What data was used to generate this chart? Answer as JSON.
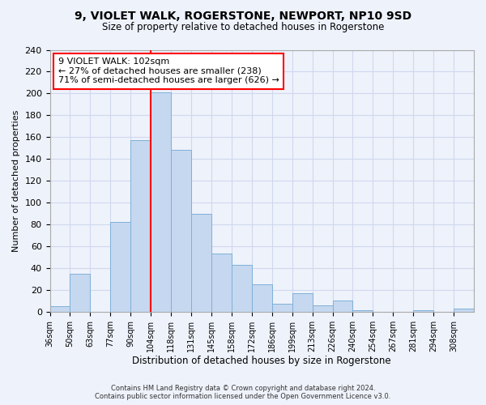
{
  "title": "9, VIOLET WALK, ROGERSTONE, NEWPORT, NP10 9SD",
  "subtitle": "Size of property relative to detached houses in Rogerstone",
  "xlabel": "Distribution of detached houses by size in Rogerstone",
  "ylabel": "Number of detached properties",
  "bar_labels": [
    "36sqm",
    "50sqm",
    "63sqm",
    "77sqm",
    "90sqm",
    "104sqm",
    "118sqm",
    "131sqm",
    "145sqm",
    "158sqm",
    "172sqm",
    "186sqm",
    "199sqm",
    "213sqm",
    "226sqm",
    "240sqm",
    "254sqm",
    "267sqm",
    "281sqm",
    "294sqm",
    "308sqm"
  ],
  "bar_values": [
    5,
    35,
    0,
    82,
    157,
    201,
    148,
    90,
    53,
    43,
    25,
    7,
    17,
    6,
    10,
    1,
    0,
    0,
    1,
    0,
    3
  ],
  "bar_color": "#c5d8f0",
  "bar_edge_color": "#7fb0d8",
  "vline_color": "red",
  "annotation_title": "9 VIOLET WALK: 102sqm",
  "annotation_line1": "← 27% of detached houses are smaller (238)",
  "annotation_line2": "71% of semi-detached houses are larger (626) →",
  "annotation_box_color": "white",
  "annotation_box_edge_color": "red",
  "ylim": [
    0,
    240
  ],
  "yticks": [
    0,
    20,
    40,
    60,
    80,
    100,
    120,
    140,
    160,
    180,
    200,
    220,
    240
  ],
  "footer_line1": "Contains HM Land Registry data © Crown copyright and database right 2024.",
  "footer_line2": "Contains public sector information licensed under the Open Government Licence v3.0.",
  "bg_color": "#eef2fb",
  "grid_color": "#d0d8ee"
}
